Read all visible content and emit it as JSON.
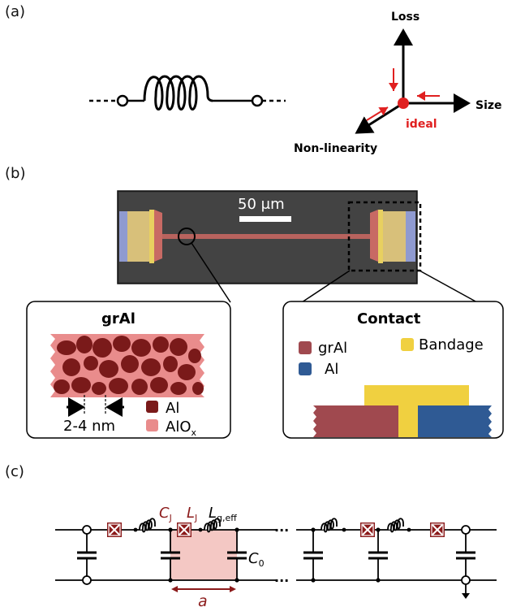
{
  "panels": {
    "a": "(a)",
    "b": "(b)",
    "c": "(c)"
  },
  "axes": {
    "loss": "Loss",
    "size": "Size",
    "nonlinearity": "Non-linearity",
    "ideal": "ideal"
  },
  "micrograph": {
    "scalebar": "50 μm"
  },
  "gral_box": {
    "title": "grAl",
    "size_label": "2-4 nm",
    "legend": [
      {
        "label": "Al",
        "color": "#7a1a1a"
      },
      {
        "label": "AlO",
        "sub": "x",
        "color": "#e98c8c"
      }
    ]
  },
  "contact_box": {
    "title": "Contact",
    "legend": [
      {
        "label": "grAl",
        "color": "#a0494f"
      },
      {
        "label": "Bandage",
        "color": "#f0d040"
      },
      {
        "label": "Al",
        "color": "#2f5a94"
      }
    ]
  },
  "circuit": {
    "cj": "C",
    "cj_sub": "J",
    "lj": "L",
    "lj_sub": "J",
    "lg": "L",
    "lg_sub": "g,eff",
    "c0": "C",
    "c0_sub": "0",
    "a": "a",
    "dots": "···"
  },
  "colors": {
    "accent_red": "#e02020",
    "junction": "#8b1a1a",
    "cell_fill": "#f4c8c4"
  }
}
